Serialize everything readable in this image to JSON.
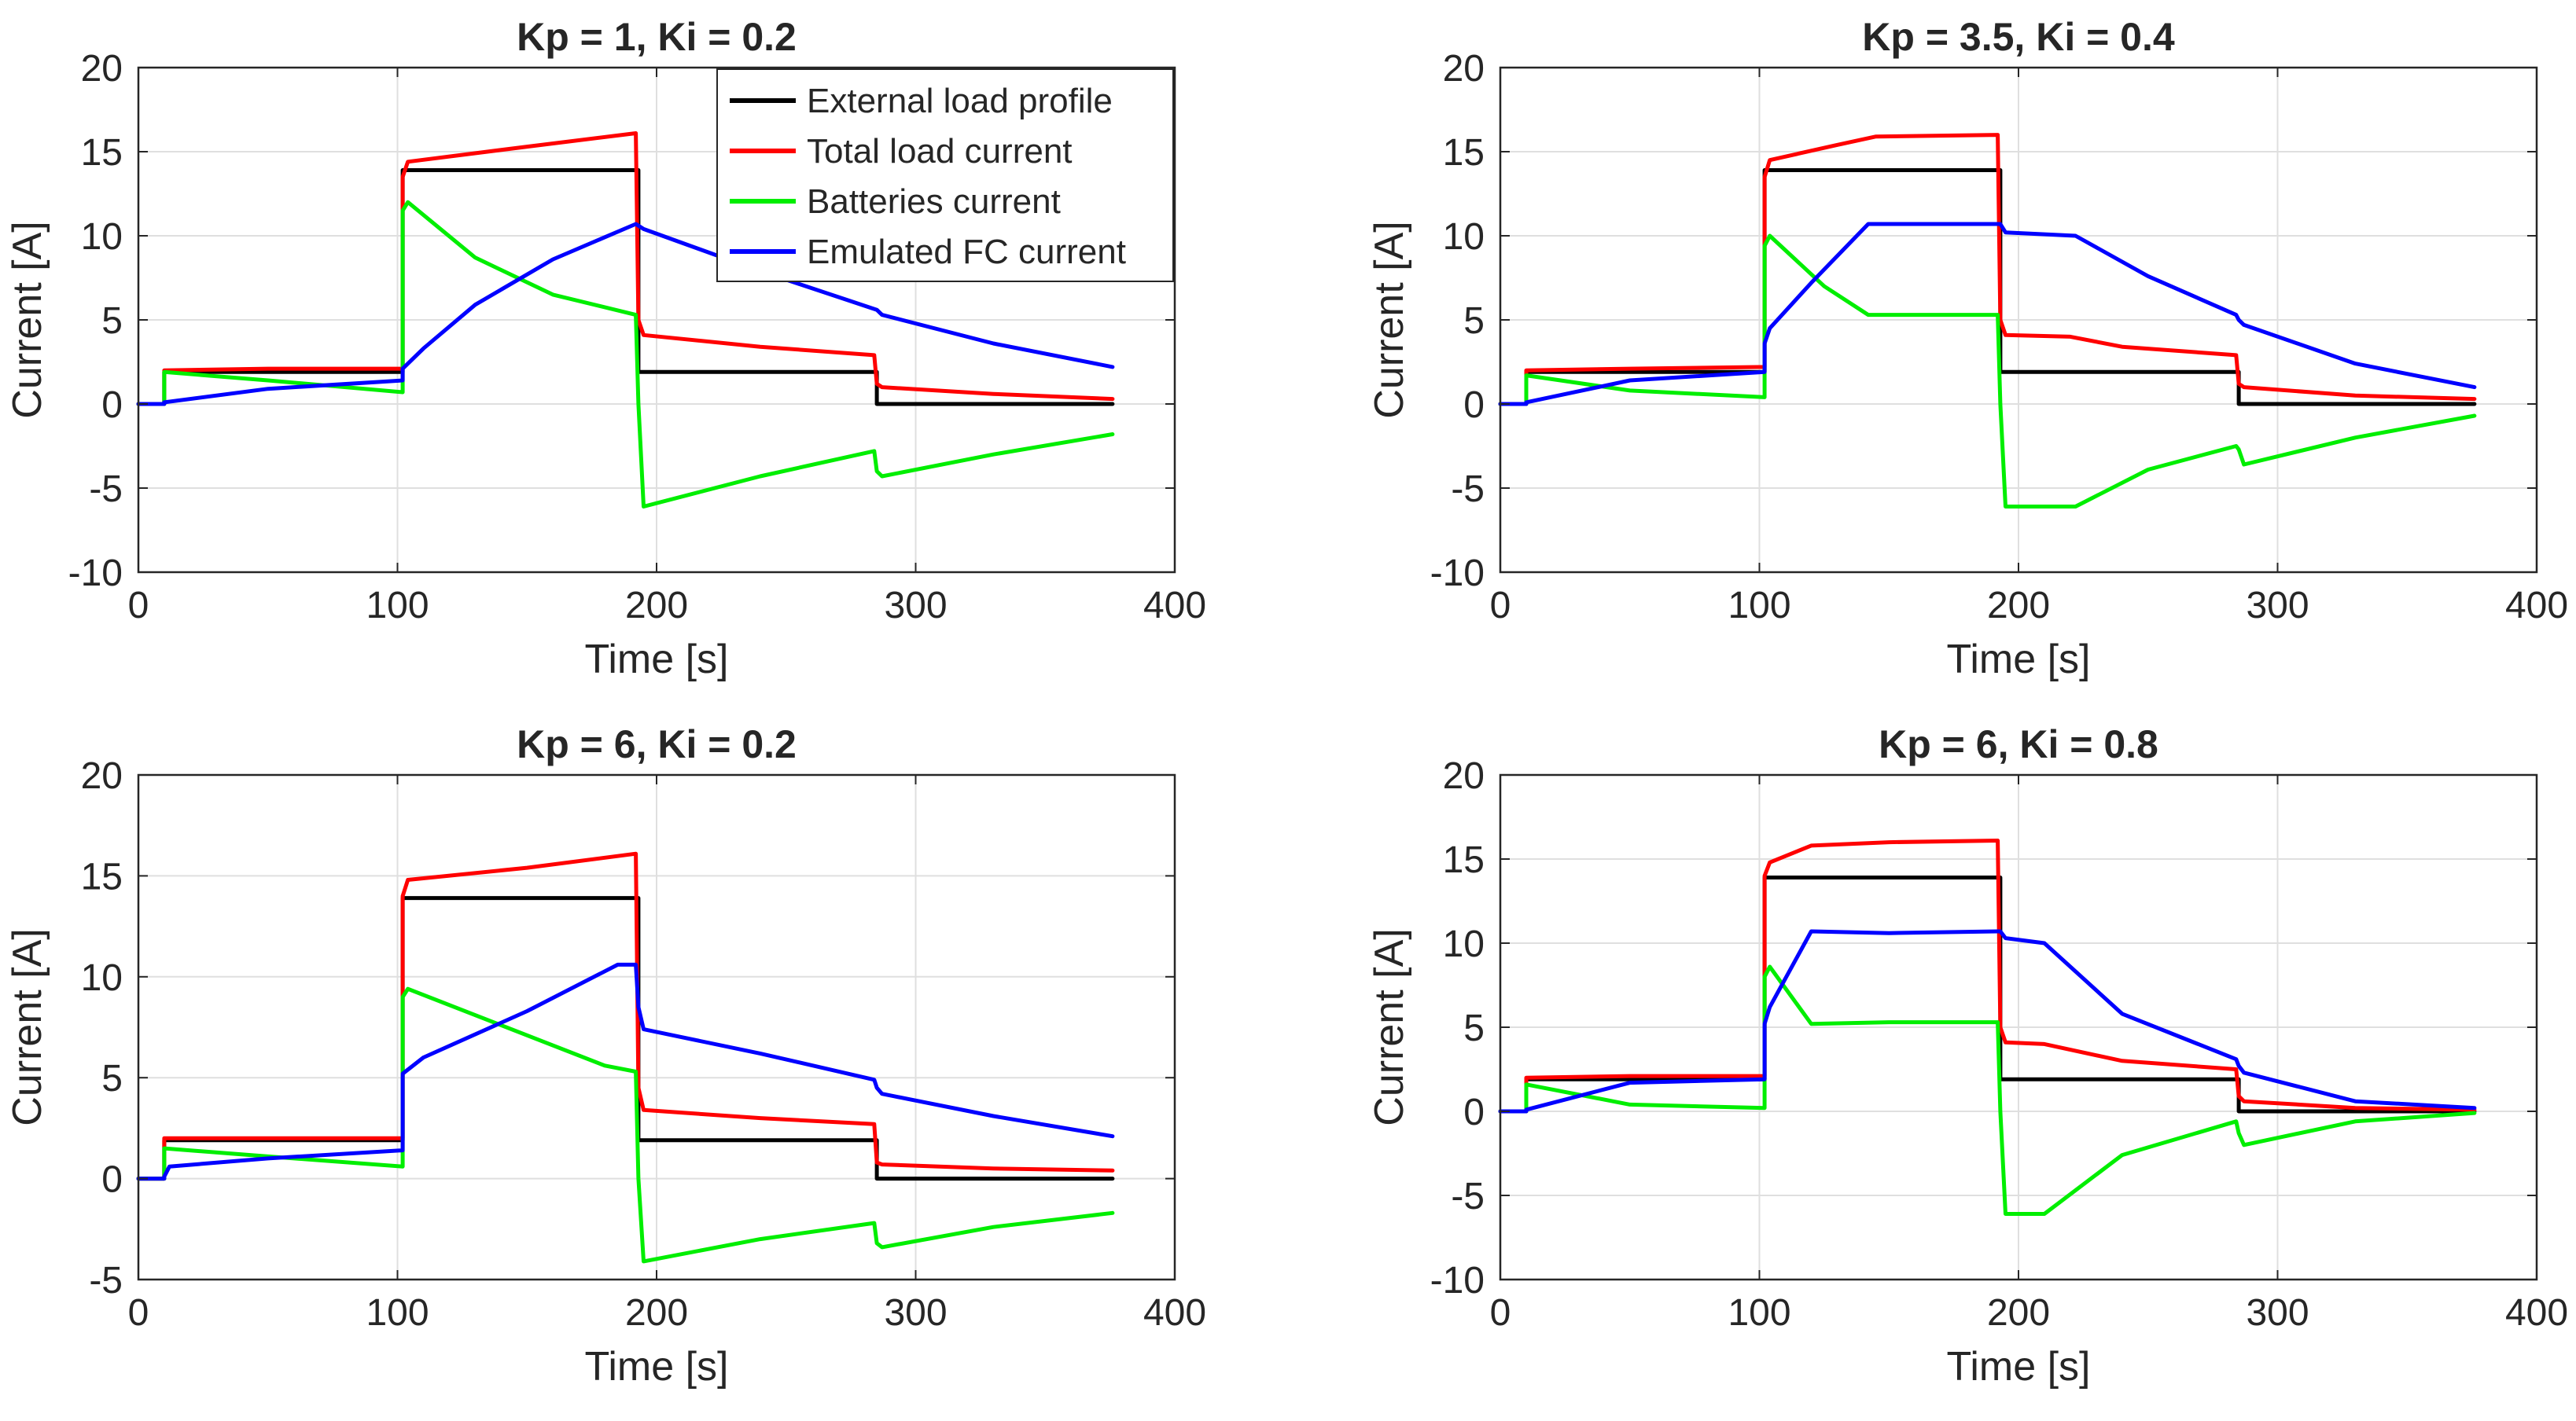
{
  "chart_data": [
    {
      "type": "line",
      "title": "Kp = 1, Ki = 0.2",
      "xlabel": "Time [s]",
      "ylabel": "Current [A]",
      "xlim": [
        0,
        400
      ],
      "ylim": [
        -10,
        20
      ],
      "xticks": [
        0,
        100,
        200,
        300,
        400
      ],
      "yticks": [
        -10,
        -5,
        0,
        5,
        10,
        15,
        20
      ],
      "xtick_labels": [
        "0",
        "100",
        "200",
        "300",
        "400"
      ],
      "ytick_labels": [
        "-10",
        "-5",
        "0",
        "5",
        "10",
        "15",
        "20"
      ],
      "grid": true,
      "legend_position": "top-right",
      "series": [
        {
          "name": "External load profile",
          "color": "#000000",
          "x": [
            0,
            10,
            10,
            102,
            102,
            193,
            193,
            285,
            285,
            376
          ],
          "y": [
            0,
            0,
            1.9,
            1.9,
            13.9,
            13.9,
            1.9,
            1.9,
            0,
            0
          ]
        },
        {
          "name": "Total load current",
          "color": "#ff0000",
          "x": [
            0,
            10,
            10,
            50,
            102,
            102,
            104,
            150,
            192,
            193,
            195,
            240,
            284,
            285,
            287,
            330,
            376
          ],
          "y": [
            0,
            0,
            2.0,
            2.1,
            2.1,
            13.5,
            14.4,
            15.3,
            16.1,
            5.0,
            4.1,
            3.4,
            2.9,
            1.2,
            1.0,
            0.6,
            0.3
          ]
        },
        {
          "name": "Batteries current",
          "color": "#00ee00",
          "x": [
            0,
            10,
            10,
            50,
            102,
            102,
            104,
            130,
            160,
            192,
            193,
            195,
            240,
            284,
            285,
            287,
            330,
            376
          ],
          "y": [
            0,
            0,
            1.9,
            1.4,
            0.7,
            11.5,
            12.0,
            8.7,
            6.5,
            5.3,
            0,
            -6.1,
            -4.3,
            -2.8,
            -4.0,
            -4.3,
            -3.0,
            -1.8
          ]
        },
        {
          "name": "Emulated FC current",
          "color": "#0000ff",
          "x": [
            0,
            10,
            10,
            50,
            102,
            102,
            110,
            130,
            160,
            192,
            195,
            240,
            285,
            287,
            330,
            376
          ],
          "y": [
            0,
            0,
            0.1,
            0.9,
            1.4,
            2.1,
            3.3,
            5.9,
            8.6,
            10.7,
            10.4,
            7.9,
            5.6,
            5.3,
            3.6,
            2.2
          ]
        }
      ]
    },
    {
      "type": "line",
      "title": "Kp = 3.5, Ki = 0.4",
      "xlabel": "Time [s]",
      "ylabel": "Current [A]",
      "xlim": [
        0,
        400
      ],
      "ylim": [
        -10,
        20
      ],
      "xticks": [
        0,
        100,
        200,
        300,
        400
      ],
      "yticks": [
        -10,
        -5,
        0,
        5,
        10,
        15,
        20
      ],
      "xtick_labels": [
        "0",
        "100",
        "200",
        "300",
        "400"
      ],
      "ytick_labels": [
        "-10",
        "-5",
        "0",
        "5",
        "10",
        "15",
        "20"
      ],
      "grid": true,
      "series": [
        {
          "name": "External load profile",
          "color": "#000000",
          "x": [
            0,
            10,
            10,
            102,
            102,
            193,
            193,
            285,
            285,
            376
          ],
          "y": [
            0,
            0,
            1.9,
            1.9,
            13.9,
            13.9,
            1.9,
            1.9,
            0,
            0
          ]
        },
        {
          "name": "Total load current",
          "color": "#ff0000",
          "x": [
            0,
            10,
            10,
            50,
            102,
            102,
            104,
            130,
            145,
            192,
            193,
            195,
            220,
            240,
            284,
            285,
            287,
            330,
            376
          ],
          "y": [
            0,
            0,
            2.0,
            2.1,
            2.2,
            13.5,
            14.5,
            15.4,
            15.9,
            16.0,
            5.0,
            4.1,
            4.0,
            3.4,
            2.9,
            1.2,
            1.0,
            0.5,
            0.3
          ]
        },
        {
          "name": "Batteries current",
          "color": "#00ee00",
          "x": [
            0,
            10,
            10,
            50,
            102,
            102,
            104,
            125,
            142,
            192,
            193,
            195,
            222,
            250,
            284,
            285,
            287,
            330,
            376
          ],
          "y": [
            0,
            0,
            1.7,
            0.8,
            0.4,
            9.4,
            10.0,
            7.0,
            5.3,
            5.3,
            0,
            -6.1,
            -6.1,
            -3.9,
            -2.5,
            -2.7,
            -3.6,
            -2.0,
            -0.7
          ]
        },
        {
          "name": "Emulated FC current",
          "color": "#0000ff",
          "x": [
            0,
            10,
            10,
            50,
            102,
            102,
            104,
            120,
            142,
            193,
            195,
            222,
            250,
            284,
            285,
            287,
            330,
            376
          ],
          "y": [
            0,
            0,
            0.1,
            1.4,
            1.9,
            3.6,
            4.5,
            7.2,
            10.7,
            10.7,
            10.2,
            10.0,
            7.6,
            5.3,
            5.0,
            4.7,
            2.4,
            1.0
          ]
        }
      ]
    },
    {
      "type": "line",
      "title": "Kp = 6, Ki = 0.2",
      "xlabel": "Time [s]",
      "ylabel": "Current [A]",
      "xlim": [
        0,
        400
      ],
      "ylim": [
        -5,
        20
      ],
      "xticks": [
        0,
        100,
        200,
        300,
        400
      ],
      "yticks": [
        -5,
        0,
        5,
        10,
        15,
        20
      ],
      "xtick_labels": [
        "0",
        "100",
        "200",
        "300",
        "400"
      ],
      "ytick_labels": [
        "-5",
        "0",
        "5",
        "10",
        "15",
        "20"
      ],
      "grid": true,
      "series": [
        {
          "name": "External load profile",
          "color": "#000000",
          "x": [
            0,
            10,
            10,
            102,
            102,
            193,
            193,
            285,
            285,
            376
          ],
          "y": [
            0,
            0,
            1.9,
            1.9,
            13.9,
            13.9,
            1.9,
            1.9,
            0,
            0
          ]
        },
        {
          "name": "Total load current",
          "color": "#ff0000",
          "x": [
            0,
            10,
            10,
            50,
            102,
            102,
            104,
            150,
            192,
            193,
            195,
            240,
            284,
            285,
            287,
            330,
            376
          ],
          "y": [
            0,
            0,
            2.0,
            2.0,
            2.0,
            14.0,
            14.8,
            15.4,
            16.1,
            4.5,
            3.4,
            3.0,
            2.7,
            0.8,
            0.7,
            0.5,
            0.4
          ]
        },
        {
          "name": "Batteries current",
          "color": "#00ee00",
          "x": [
            0,
            10,
            10,
            50,
            102,
            102,
            104,
            140,
            180,
            192,
            193,
            195,
            240,
            284,
            285,
            287,
            330,
            376
          ],
          "y": [
            0,
            0,
            1.5,
            1.1,
            0.6,
            9.0,
            9.4,
            7.6,
            5.6,
            5.3,
            0,
            -4.1,
            -3.0,
            -2.2,
            -3.2,
            -3.4,
            -2.4,
            -1.7
          ]
        },
        {
          "name": "Emulated FC current",
          "color": "#0000ff",
          "x": [
            0,
            10,
            10,
            12,
            50,
            102,
            102,
            110,
            150,
            185,
            192,
            193,
            195,
            240,
            284,
            285,
            287,
            330,
            376
          ],
          "y": [
            0,
            0,
            0.1,
            0.6,
            1.0,
            1.4,
            5.2,
            6.0,
            8.3,
            10.6,
            10.6,
            8.5,
            7.4,
            6.2,
            4.9,
            4.5,
            4.2,
            3.1,
            2.1
          ]
        }
      ]
    },
    {
      "type": "line",
      "title": "Kp = 6, Ki = 0.8",
      "xlabel": "Time [s]",
      "ylabel": "Current [A]",
      "xlim": [
        0,
        400
      ],
      "ylim": [
        -10,
        20
      ],
      "xticks": [
        0,
        100,
        200,
        300,
        400
      ],
      "yticks": [
        -10,
        -5,
        0,
        5,
        10,
        15,
        20
      ],
      "xtick_labels": [
        "0",
        "100",
        "200",
        "300",
        "400"
      ],
      "ytick_labels": [
        "-10",
        "-5",
        "0",
        "5",
        "10",
        "15",
        "20"
      ],
      "grid": true,
      "series": [
        {
          "name": "External load profile",
          "color": "#000000",
          "x": [
            0,
            10,
            10,
            102,
            102,
            193,
            193,
            285,
            285,
            376
          ],
          "y": [
            0,
            0,
            1.9,
            1.9,
            13.9,
            13.9,
            1.9,
            1.9,
            0,
            0
          ]
        },
        {
          "name": "Total load current",
          "color": "#ff0000",
          "x": [
            0,
            10,
            10,
            50,
            102,
            102,
            104,
            120,
            150,
            192,
            193,
            195,
            210,
            240,
            284,
            285,
            287,
            330,
            376
          ],
          "y": [
            0,
            0,
            2.0,
            2.1,
            2.1,
            14.0,
            14.8,
            15.8,
            16.0,
            16.1,
            5.0,
            4.1,
            4.0,
            3.0,
            2.5,
            0.9,
            0.6,
            0.2,
            0.1
          ]
        },
        {
          "name": "Batteries current",
          "color": "#00ee00",
          "x": [
            0,
            10,
            10,
            50,
            102,
            102,
            104,
            120,
            150,
            192,
            193,
            195,
            210,
            240,
            284,
            285,
            287,
            330,
            376
          ],
          "y": [
            0,
            0,
            1.6,
            0.4,
            0.2,
            8.0,
            8.6,
            5.2,
            5.3,
            5.3,
            0,
            -6.1,
            -6.1,
            -2.6,
            -0.6,
            -1.3,
            -2.0,
            -0.6,
            -0.1
          ]
        },
        {
          "name": "Emulated FC current",
          "color": "#0000ff",
          "x": [
            0,
            10,
            10,
            50,
            102,
            102,
            104,
            120,
            150,
            193,
            195,
            210,
            240,
            284,
            285,
            287,
            330,
            376
          ],
          "y": [
            0,
            0,
            0.1,
            1.7,
            1.9,
            5.2,
            6.2,
            10.7,
            10.6,
            10.7,
            10.3,
            10.0,
            5.8,
            3.1,
            2.7,
            2.3,
            0.6,
            0.2
          ]
        }
      ]
    }
  ]
}
